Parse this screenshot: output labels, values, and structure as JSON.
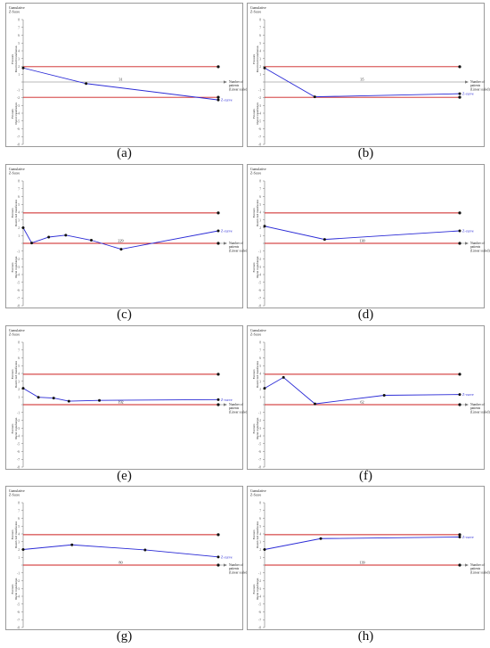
{
  "common": {
    "y_title_lines": [
      "Cumulative",
      "Z-Score"
    ],
    "x_title_lines": [
      "Number of",
      "patients",
      "(Linear scaled)"
    ],
    "favours_upper_lines": [
      "Favours",
      "Restricted transfusion"
    ],
    "favours_lower_lines": [
      "Favours",
      "liberal transfusion"
    ],
    "zcurve_label": "Z-curve",
    "y_ticks": [
      "8",
      "7",
      "6",
      "5",
      "4",
      "3",
      "2",
      "1",
      "",
      "-1",
      "-2",
      "-3",
      "-4",
      "-5",
      "-6",
      "-7",
      "-8"
    ],
    "ylim": [
      -8,
      8
    ],
    "colors": {
      "boundary": "#cc1f1f",
      "zcurve": "#2b2bd6",
      "marker": "#111111"
    }
  },
  "chart_data": [
    {
      "panel": "(a)",
      "type": "line",
      "x_label": "31",
      "x": [
        0,
        10,
        31
      ],
      "y": [
        1.8,
        -0.2,
        -2.3
      ],
      "boundaries": [
        1.96,
        -1.96
      ],
      "xlim": [
        0,
        31
      ]
    },
    {
      "panel": "(b)",
      "type": "line",
      "x_label": "35",
      "x": [
        0,
        9,
        35
      ],
      "y": [
        1.8,
        -1.9,
        -1.5
      ],
      "boundaries": [
        1.96,
        -1.96
      ],
      "xlim": [
        0,
        35
      ]
    },
    {
      "panel": "(c)",
      "type": "line",
      "x_label": "229",
      "x": [
        0,
        10,
        30,
        50,
        80,
        115,
        229
      ],
      "y": [
        2.0,
        0.05,
        0.8,
        1.05,
        0.4,
        -0.75,
        1.6
      ],
      "boundaries": [
        3.9,
        0
      ],
      "xlim": [
        0,
        229
      ]
    },
    {
      "panel": "(d)",
      "type": "line",
      "x_label": "130",
      "x": [
        0,
        40,
        130
      ],
      "y": [
        2.2,
        0.5,
        1.6
      ],
      "boundaries": [
        3.9,
        0
      ],
      "xlim": [
        0,
        130
      ]
    },
    {
      "panel": "(e)",
      "type": "line",
      "x_label": "192",
      "x": [
        0,
        15,
        30,
        45,
        75,
        192
      ],
      "y": [
        2.1,
        0.95,
        0.85,
        0.45,
        0.55,
        0.65
      ],
      "boundaries": [
        3.9,
        0
      ],
      "xlim": [
        0,
        192
      ]
    },
    {
      "panel": "(f)",
      "type": "line",
      "x_label": "62",
      "x": [
        0,
        6,
        16,
        38,
        62
      ],
      "y": [
        2.1,
        3.5,
        0.1,
        1.2,
        1.3
      ],
      "boundaries": [
        3.9,
        0
      ],
      "xlim": [
        0,
        62
      ]
    },
    {
      "panel": "(g)",
      "type": "line",
      "x_label": "80",
      "x": [
        0,
        20,
        50,
        80
      ],
      "y": [
        2.0,
        2.6,
        1.95,
        1.05
      ],
      "boundaries": [
        3.9,
        0
      ],
      "xlim": [
        0,
        80
      ]
    },
    {
      "panel": "(h)",
      "type": "line",
      "x_label": "139",
      "x": [
        0,
        40,
        139
      ],
      "y": [
        2.0,
        3.4,
        3.6
      ],
      "boundaries": [
        3.9,
        0
      ],
      "xlim": [
        0,
        139
      ]
    }
  ]
}
